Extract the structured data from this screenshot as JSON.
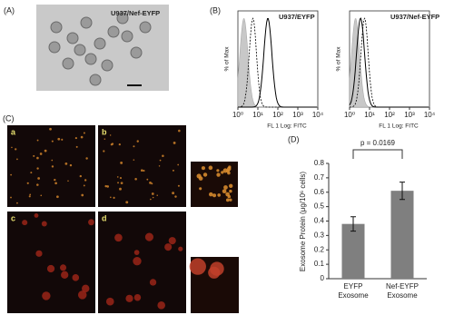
{
  "figure": {
    "panel_a": {
      "label": "(A)",
      "caption": "U937/Nef-EYFP"
    },
    "panel_b": {
      "label": "(B)",
      "y_label": "% of Max",
      "plots": [
        {
          "title": "U937/EYFP",
          "x_label": "FL 1 Log: FITC"
        },
        {
          "title": "U937/Nef-EYFP",
          "x_label": "FL 1 Log: FITC"
        }
      ],
      "x_tick_labels": [
        "10⁰",
        "10¹",
        "10²",
        "10³",
        "10⁴"
      ]
    },
    "panel_c": {
      "label": "(C)",
      "sub_labels": [
        "a",
        "b",
        "c",
        "d"
      ]
    },
    "panel_d": {
      "label": "(D)"
    }
  },
  "chart_data": {
    "type": "bar",
    "y_label": "Exosome Protein (μg/10⁶ cells)",
    "categories": [
      "EYFP Exosome",
      "Nef-EYFP Exosome"
    ],
    "values": [
      0.38,
      0.61
    ],
    "errors": [
      0.05,
      0.06
    ],
    "color": "#7f7f7f",
    "annotation": "p = 0.0169",
    "ylim": [
      0,
      0.8
    ],
    "yticks": [
      0,
      0.1,
      0.2,
      0.3,
      0.4,
      0.5,
      0.6,
      0.7,
      0.8
    ]
  }
}
